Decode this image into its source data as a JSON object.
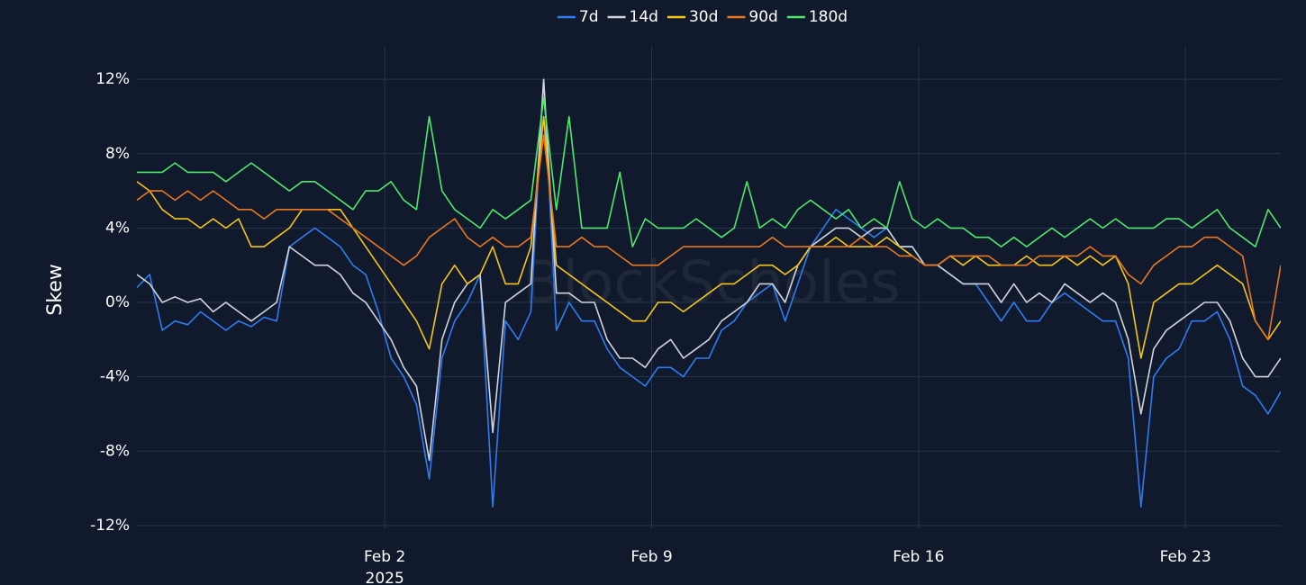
{
  "chart_data": {
    "type": "line",
    "y_label": "Skew",
    "watermark": "BlockScholes",
    "xlim": [
      "2025-01-26 12:00",
      "2025-02-25 12:00"
    ],
    "xticks": [
      {
        "value": "2025-02-02 00:00",
        "label": "Feb 2\n2025"
      },
      {
        "value": "2025-02-09 00:00",
        "label": "Feb 9"
      },
      {
        "value": "2025-02-16 00:00",
        "label": "Feb 16"
      },
      {
        "value": "2025-02-23 00:00",
        "label": "Feb 23"
      }
    ],
    "ylim": [
      -12.2,
      13.8
    ],
    "yticks": [
      {
        "value": 12,
        "label": "12%"
      },
      {
        "value": 8,
        "label": "8%"
      },
      {
        "value": 4,
        "label": "4%"
      },
      {
        "value": 0,
        "label": "0%"
      },
      {
        "value": -4,
        "label": "-4%"
      },
      {
        "value": -8,
        "label": "-8%"
      },
      {
        "value": -12,
        "label": "-12%"
      }
    ],
    "grid": true,
    "legend": "top",
    "x": [
      "2025-01-26 12:00",
      "2025-01-26 20:00",
      "2025-01-27 04:00",
      "2025-01-27 12:00",
      "2025-01-27 20:00",
      "2025-01-28 04:00",
      "2025-01-28 12:00",
      "2025-01-28 20:00",
      "2025-01-29 04:00",
      "2025-01-29 12:00",
      "2025-01-29 20:00",
      "2025-01-30 04:00",
      "2025-01-30 12:00",
      "2025-01-30 20:00",
      "2025-01-31 04:00",
      "2025-01-31 12:00",
      "2025-01-31 20:00",
      "2025-02-01 04:00",
      "2025-02-01 12:00",
      "2025-02-01 20:00",
      "2025-02-02 04:00",
      "2025-02-02 12:00",
      "2025-02-02 20:00",
      "2025-02-03 04:00",
      "2025-02-03 12:00",
      "2025-02-03 20:00",
      "2025-02-04 04:00",
      "2025-02-04 12:00",
      "2025-02-04 20:00",
      "2025-02-05 04:00",
      "2025-02-05 12:00",
      "2025-02-05 20:00",
      "2025-02-06 04:00",
      "2025-02-06 12:00",
      "2025-02-06 20:00",
      "2025-02-07 04:00",
      "2025-02-07 12:00",
      "2025-02-07 20:00",
      "2025-02-08 04:00",
      "2025-02-08 12:00",
      "2025-02-08 20:00",
      "2025-02-09 04:00",
      "2025-02-09 12:00",
      "2025-02-09 20:00",
      "2025-02-10 04:00",
      "2025-02-10 12:00",
      "2025-02-10 20:00",
      "2025-02-11 04:00",
      "2025-02-11 12:00",
      "2025-02-11 20:00",
      "2025-02-12 04:00",
      "2025-02-12 12:00",
      "2025-02-12 20:00",
      "2025-02-13 04:00",
      "2025-02-13 12:00",
      "2025-02-13 20:00",
      "2025-02-14 04:00",
      "2025-02-14 12:00",
      "2025-02-14 20:00",
      "2025-02-15 04:00",
      "2025-02-15 12:00",
      "2025-02-15 20:00",
      "2025-02-16 04:00",
      "2025-02-16 12:00",
      "2025-02-16 20:00",
      "2025-02-17 04:00",
      "2025-02-17 12:00",
      "2025-02-17 20:00",
      "2025-02-18 04:00",
      "2025-02-18 12:00",
      "2025-02-18 20:00",
      "2025-02-19 04:00",
      "2025-02-19 12:00",
      "2025-02-19 20:00",
      "2025-02-20 04:00",
      "2025-02-20 12:00",
      "2025-02-20 20:00",
      "2025-02-21 04:00",
      "2025-02-21 12:00",
      "2025-02-21 20:00",
      "2025-02-22 04:00",
      "2025-02-22 12:00",
      "2025-02-22 20:00",
      "2025-02-23 04:00",
      "2025-02-23 12:00",
      "2025-02-23 20:00",
      "2025-02-24 04:00",
      "2025-02-24 12:00",
      "2025-02-24 20:00",
      "2025-02-25 04:00",
      "2025-02-25 12:00"
    ],
    "series": [
      {
        "name": "7d",
        "color": "#2f7bf0",
        "values": [
          0.8,
          1.5,
          -1.5,
          -1,
          -1.2,
          -0.5,
          -1,
          -1.5,
          -1,
          -1.3,
          -0.8,
          -1,
          3,
          3.5,
          4,
          3.5,
          3,
          2,
          1.5,
          -0.5,
          -3,
          -4,
          -5.5,
          -9.5,
          -3,
          -1,
          0,
          1.5,
          -11,
          -1,
          -2,
          -0.5,
          12,
          -1.5,
          0,
          -1,
          -1,
          -2.5,
          -3.5,
          -4,
          -4.5,
          -3.5,
          -3.5,
          -4,
          -3,
          -3,
          -1.5,
          -1,
          0,
          0.5,
          1,
          -1,
          1,
          3,
          4,
          5,
          4.5,
          4,
          3.5,
          4,
          3,
          3,
          2,
          2,
          1.5,
          1,
          1,
          0,
          -1,
          0,
          -1,
          -1,
          0,
          0.5,
          0,
          -0.5,
          -1,
          -1,
          -3,
          -11,
          -4,
          -3,
          -2.5,
          -1,
          -1,
          -0.5,
          -2,
          -4.5,
          -5,
          -6,
          -4.8
        ]
      },
      {
        "name": "14d",
        "color": "#d0d4dc",
        "values": [
          1.5,
          1,
          0,
          0.3,
          0,
          0.2,
          -0.5,
          0,
          -0.5,
          -1,
          -0.5,
          0,
          3,
          2.5,
          2,
          2,
          1.5,
          0.5,
          0,
          -1,
          -2,
          -3.5,
          -4.5,
          -8.5,
          -2,
          0,
          1,
          1.5,
          -7,
          0,
          0.5,
          1,
          12,
          0.5,
          0.5,
          0,
          0,
          -2,
          -3,
          -3,
          -3.5,
          -2.5,
          -2,
          -3,
          -2.5,
          -2,
          -1,
          -0.5,
          0,
          1,
          1,
          0,
          2,
          3,
          3.5,
          4,
          4,
          3.5,
          4,
          4,
          3,
          3,
          2,
          2,
          1.5,
          1,
          1,
          1,
          0,
          1,
          0,
          0.5,
          0,
          1,
          0.5,
          0,
          0.5,
          0,
          -2,
          -6,
          -2.5,
          -1.5,
          -1,
          -0.5,
          0,
          0,
          -1,
          -3,
          -4,
          -4,
          -3
        ]
      },
      {
        "name": "30d",
        "color": "#f5c518",
        "values": [
          6.5,
          6,
          5,
          4.5,
          4.5,
          4,
          4.5,
          4,
          4.5,
          3,
          3,
          3.5,
          4,
          5,
          5,
          5,
          5,
          4,
          3,
          2,
          1,
          0,
          -1,
          -2.5,
          1,
          2,
          1,
          1.5,
          3,
          1,
          1,
          3,
          10,
          2,
          1.5,
          1,
          0.5,
          0,
          -0.5,
          -1,
          -1,
          0,
          0,
          -0.5,
          0,
          0.5,
          1,
          1,
          1.5,
          2,
          2,
          1.5,
          2,
          3,
          3,
          3.5,
          3,
          3,
          3,
          3.5,
          3,
          2.5,
          2,
          2,
          2.5,
          2,
          2.5,
          2,
          2,
          2,
          2.5,
          2,
          2,
          2.5,
          2,
          2.5,
          2,
          2.5,
          1,
          -3,
          0,
          0.5,
          1,
          1,
          1.5,
          2,
          1.5,
          1,
          -1,
          -2,
          -1
        ]
      },
      {
        "name": "90d",
        "color": "#e8771e",
        "values": [
          5.5,
          6,
          6,
          5.5,
          6,
          5.5,
          6,
          5.5,
          5,
          5,
          4.5,
          5,
          5,
          5,
          5,
          5,
          4.5,
          4,
          3.5,
          3,
          2.5,
          2,
          2.5,
          3.5,
          4,
          4.5,
          3.5,
          3,
          3.5,
          3,
          3,
          3.5,
          9,
          3,
          3,
          3.5,
          3,
          3,
          2.5,
          2,
          2,
          2,
          2.5,
          3,
          3,
          3,
          3,
          3,
          3,
          3,
          3.5,
          3,
          3,
          3,
          3,
          3,
          3,
          3.5,
          3,
          3,
          2.5,
          2.5,
          2,
          2,
          2.5,
          2.5,
          2.5,
          2.5,
          2,
          2,
          2,
          2.5,
          2.5,
          2.5,
          2.5,
          3,
          2.5,
          2.5,
          1.5,
          1,
          2,
          2.5,
          3,
          3,
          3.5,
          3.5,
          3,
          2.5,
          -1,
          -2,
          2
        ]
      },
      {
        "name": "180d",
        "color": "#4ee86a",
        "values": [
          7,
          7,
          7,
          7.5,
          7,
          7,
          7,
          6.5,
          7,
          7.5,
          7,
          6.5,
          6,
          6.5,
          6.5,
          6,
          5.5,
          5,
          6,
          6,
          6.5,
          5.5,
          5,
          10,
          6,
          5,
          4.5,
          4,
          5,
          4.5,
          5,
          5.5,
          11,
          5,
          10,
          4,
          4,
          4,
          7,
          3,
          4.5,
          4,
          4,
          4,
          4.5,
          4,
          3.5,
          4,
          6.5,
          4,
          4.5,
          4,
          5,
          5.5,
          5,
          4.5,
          5,
          4,
          4.5,
          4,
          6.5,
          4.5,
          4,
          4.5,
          4,
          4,
          3.5,
          3.5,
          3,
          3.5,
          3,
          3.5,
          4,
          3.5,
          4,
          4.5,
          4,
          4.5,
          4,
          4,
          4,
          4.5,
          4.5,
          4,
          4.5,
          5,
          4,
          3.5,
          3,
          5,
          4
        ]
      }
    ]
  }
}
